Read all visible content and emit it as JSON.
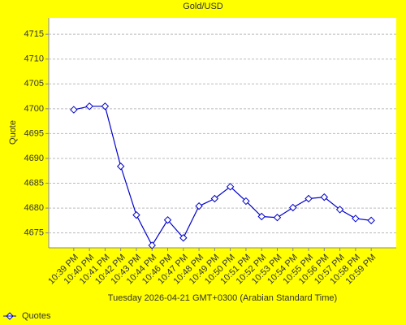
{
  "chart_data": {
    "type": "line",
    "title": "Gold/USD",
    "y_label": "Quote",
    "x_label": "Tuesday 2026-04-21 GMT+0300 (Arabian Standard Time)",
    "categories": [
      "10:39 PM",
      "10:40 PM",
      "10:41 PM",
      "10:42 PM",
      "10:43 PM",
      "10:44 PM",
      "10:46 PM",
      "10:47 PM",
      "10:48 PM",
      "10:49 PM",
      "10:50 PM",
      "10:51 PM",
      "10:52 PM",
      "10:53 PM",
      "10:54 PM",
      "10:55 PM",
      "10:56 PM",
      "10:57 PM",
      "10:58 PM",
      "10:59 PM"
    ],
    "series": [
      {
        "name": "Quotes",
        "color": "#0000cc",
        "values": [
          4699.8,
          4700.5,
          4700.5,
          4688.4,
          4678.6,
          4672.5,
          4677.6,
          4674.0,
          4680.4,
          4681.9,
          4684.3,
          4681.4,
          4678.3,
          4678.1,
          4680.1,
          4681.9,
          4682.2,
          4679.7,
          4677.9,
          4677.5
        ]
      }
    ],
    "ylim": [
      4672,
      4718.3
    ],
    "yticks": [
      4675,
      4680,
      4685,
      4690,
      4695,
      4700,
      4705,
      4710,
      4715
    ],
    "grid": true,
    "legend": "bottom-left"
  }
}
